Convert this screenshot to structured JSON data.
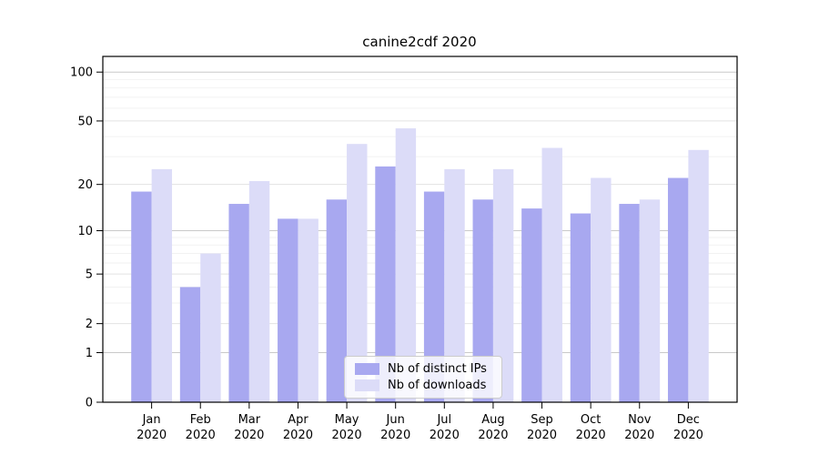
{
  "title": "canine2cdf 2020",
  "colors": {
    "distinct_ips": "#a8a8f0",
    "downloads": "#dcdcf8",
    "grid_decade": "#c9c9c9",
    "grid_mid": "#e3e3e3",
    "grid_minor": "#f2f2f2",
    "spine": "#000000"
  },
  "legend": {
    "items": [
      {
        "label": "Nb of distinct IPs",
        "color_key": "distinct_ips"
      },
      {
        "label": "Nb of downloads",
        "color_key": "downloads"
      }
    ]
  },
  "x_axis": {
    "months": [
      "Jan",
      "Feb",
      "Mar",
      "Apr",
      "May",
      "Jun",
      "Jul",
      "Aug",
      "Sep",
      "Oct",
      "Nov",
      "Dec"
    ],
    "year_line": "2020"
  },
  "y_axis": {
    "tick_labels": [
      "100",
      "50",
      "20",
      "10",
      "5",
      "2",
      "1",
      "0"
    ],
    "tick_values": [
      100,
      50,
      20,
      10,
      5,
      2,
      1,
      0
    ],
    "mid_gridlines": [
      2,
      5,
      20,
      50
    ],
    "decade_gridlines": [
      1,
      10,
      100
    ],
    "minor_gridlines": [
      3,
      4,
      6,
      7,
      8,
      9,
      30,
      40,
      60,
      70,
      80,
      90
    ]
  },
  "chart_data": {
    "type": "bar",
    "title": "canine2cdf 2020",
    "categories": [
      "Jan 2020",
      "Feb 2020",
      "Mar 2020",
      "Apr 2020",
      "May 2020",
      "Jun 2020",
      "Jul 2020",
      "Aug 2020",
      "Sep 2020",
      "Oct 2020",
      "Nov 2020",
      "Dec 2020"
    ],
    "series": [
      {
        "name": "Nb of distinct IPs",
        "values": [
          18,
          4,
          15,
          12,
          16,
          26,
          18,
          16,
          14,
          13,
          15,
          22
        ]
      },
      {
        "name": "Nb of downloads",
        "values": [
          25,
          7,
          21,
          12,
          36,
          45,
          25,
          25,
          34,
          22,
          16,
          33
        ]
      }
    ],
    "xlabel": "",
    "ylabel": "",
    "yscale": "log10(1+x)",
    "ylim": [
      0,
      127
    ],
    "yticks": [
      0,
      1,
      2,
      5,
      10,
      20,
      50,
      100
    ],
    "grid": "horizontal",
    "legend_position": "lower-center-inside"
  }
}
